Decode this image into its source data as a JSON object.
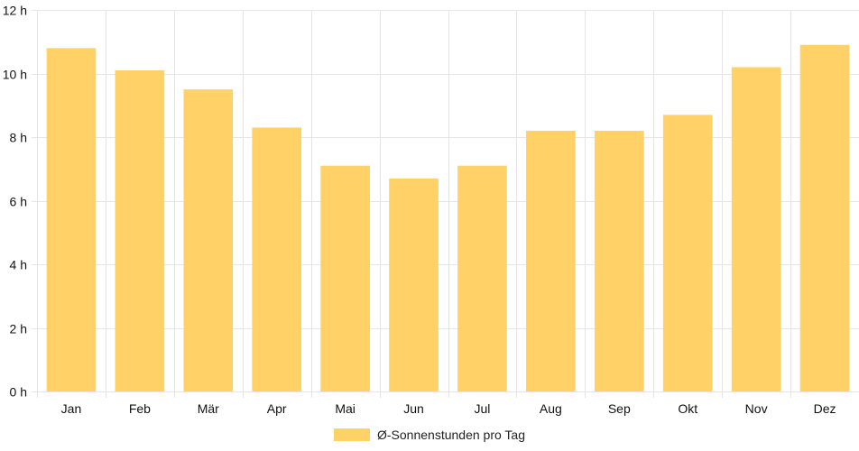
{
  "chart_data": {
    "type": "bar",
    "categories": [
      "Jan",
      "Feb",
      "Mär",
      "Apr",
      "Mai",
      "Jun",
      "Jul",
      "Aug",
      "Sep",
      "Okt",
      "Nov",
      "Dez"
    ],
    "series": [
      {
        "name": "Ø-Sonnenstunden pro Tag",
        "values": [
          10.8,
          10.1,
          9.5,
          8.3,
          7.1,
          6.7,
          7.1,
          8.2,
          8.2,
          8.7,
          10.2,
          10.9
        ],
        "color": "#ffd166"
      }
    ],
    "ylim": [
      0,
      12
    ],
    "y_ticks": [
      0,
      2,
      4,
      6,
      8,
      10,
      12
    ],
    "y_tick_suffix": " h",
    "grid": true,
    "legend_position": "bottom",
    "grid_color": "#e5e5e5"
  }
}
